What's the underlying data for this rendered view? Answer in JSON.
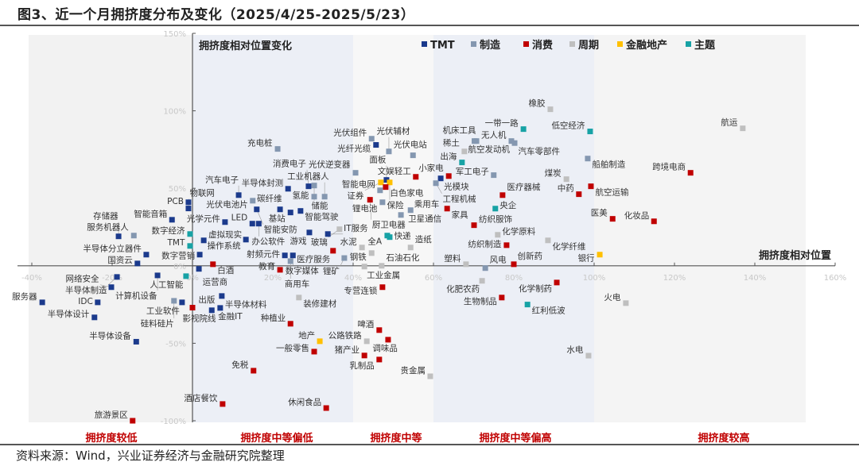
{
  "title": "图3、近一个月拥挤度分布及变化（2025/4/25-2025/5/23）",
  "source": "资料来源：Wind，兴业证券经济与金融研究院整理",
  "chart_data": {
    "type": "scatter",
    "xlabel": "拥挤度相对位置",
    "ylabel": "拥挤度相对位置变化",
    "xlim": [
      -40,
      160
    ],
    "ylim": [
      -100,
      150
    ],
    "x_ticks": [
      "-40%",
      "-20%",
      "0%",
      "20%",
      "40%",
      "60%",
      "80%",
      "100%",
      "120%",
      "140%",
      "160%"
    ],
    "y_ticks": [
      "150%",
      "100%",
      "50%",
      "0%",
      "-50%",
      "-100%"
    ],
    "legend_position": "top",
    "zones": [
      "拥挤度较低",
      "拥挤度中等偏低",
      "拥挤度中等",
      "拥挤度中等偏高",
      "拥挤度较高"
    ],
    "zone_bounds": [
      -40,
      0,
      40,
      60,
      100,
      160
    ],
    "groups": [
      {
        "name": "TMT",
        "color": "#1b3a8c"
      },
      {
        "name": "制造",
        "color": "#8497b0"
      },
      {
        "name": "消费",
        "color": "#c00000"
      },
      {
        "name": "周期",
        "color": "#bfbfbf"
      },
      {
        "name": "金融地产",
        "color": "#ffc000"
      },
      {
        "name": "主题",
        "color": "#17a2a5"
      }
    ],
    "points": [
      {
        "name": "PCB",
        "group": "TMT",
        "x": -1,
        "y": 41
      },
      {
        "name": "物联网",
        "group": "TMT",
        "x": -1,
        "y": 37
      },
      {
        "name": "智能音箱",
        "group": "TMT",
        "x": -5.1,
        "y": 29.7
      },
      {
        "name": "存储器",
        "group": "TMT",
        "x": -18.4,
        "y": 19
      },
      {
        "name": "服务机器人",
        "group": "制造",
        "x": -14.6,
        "y": 19.5
      },
      {
        "name": "数字经济",
        "group": "主题",
        "x": -0.6,
        "y": 20.5
      },
      {
        "name": "TMT",
        "group": "主题",
        "x": -0.6,
        "y": 12.8
      },
      {
        "name": "半导体分立器件",
        "group": "TMT",
        "x": -11.5,
        "y": 7.2
      },
      {
        "name": "国资云",
        "group": "TMT",
        "x": -13.7,
        "y": 1.5
      },
      {
        "name": "半导体制造",
        "group": "TMT",
        "x": -18.8,
        "y": -7.2
      },
      {
        "name": "计算机设备",
        "group": "TMT",
        "x": -8.7,
        "y": -6.2
      },
      {
        "name": "人工智能",
        "group": "主题",
        "x": -1.6,
        "y": -6.7
      },
      {
        "name": "网络安全",
        "group": "TMT",
        "x": -20.2,
        "y": -13.8
      },
      {
        "name": "服务器",
        "group": "TMT",
        "x": -37.4,
        "y": -23.6
      },
      {
        "name": "IDC",
        "group": "TMT",
        "x": -23.6,
        "y": -23.6
      },
      {
        "name": "硅料硅片",
        "group": "制造",
        "x": -4.6,
        "y": -22.6
      },
      {
        "name": "工业软件",
        "group": "TMT",
        "x": -2.6,
        "y": -23.6
      },
      {
        "name": "影视院线",
        "group": "消费",
        "x": 0,
        "y": -27
      },
      {
        "name": "半导体设计",
        "group": "TMT",
        "x": -24.4,
        "y": -33.3
      },
      {
        "name": "半导体设备",
        "group": "TMT",
        "x": -14,
        "y": -49
      },
      {
        "name": "旅游景区",
        "group": "消费",
        "x": -14.9,
        "y": -100
      },
      {
        "name": "充电桩",
        "group": "制造",
        "x": 21.2,
        "y": 75.4
      },
      {
        "name": "汽车电子",
        "group": "TMT",
        "x": 11.5,
        "y": 45.6
      },
      {
        "name": "半导体封测",
        "group": "TMT",
        "x": 23.8,
        "y": 49.7
      },
      {
        "name": "消费电子",
        "group": "TMT",
        "x": 28.9,
        "y": 51.3
      },
      {
        "name": "储能",
        "group": "制造",
        "x": 30.3,
        "y": 51.8
      },
      {
        "name": "工业机器人",
        "group": "制造",
        "x": 32.9,
        "y": 44.6
      },
      {
        "name": "氢能",
        "group": "制造",
        "x": 30.3,
        "y": 44.6
      },
      {
        "name": "光伏电池片",
        "group": "制造",
        "x": 15,
        "y": 42
      },
      {
        "name": "碳纤维",
        "group": "TMT",
        "x": 21.8,
        "y": 36.4
      },
      {
        "name": "智能安防",
        "group": "TMT",
        "x": 16,
        "y": 36.4
      },
      {
        "name": "基站",
        "group": "TMT",
        "x": 24.4,
        "y": 34.4
      },
      {
        "name": "智能驾驶",
        "group": "TMT",
        "x": 26.9,
        "y": 35.4
      },
      {
        "name": "光学元件",
        "group": "TMT",
        "x": 8.1,
        "y": 28.2
      },
      {
        "name": "LED",
        "group": "TMT",
        "x": 14.9,
        "y": 27.2
      },
      {
        "name": "办公软件",
        "group": "TMT",
        "x": 16.5,
        "y": 27.2
      },
      {
        "name": "虚拟现实",
        "group": "TMT",
        "x": 2.8,
        "y": 16.4
      },
      {
        "name": "操作系统",
        "group": "TMT",
        "x": 13.3,
        "y": 16.9
      },
      {
        "name": "游戏",
        "group": "TMT",
        "x": 29.1,
        "y": 21.5
      },
      {
        "name": "IT服务",
        "group": "TMT",
        "x": 33.7,
        "y": 20.5
      },
      {
        "name": "玻璃",
        "group": "周期",
        "x": 36.6,
        "y": 23.6
      },
      {
        "name": "数字营销",
        "group": "TMT",
        "x": 1.8,
        "y": 7.2
      },
      {
        "name": "射频元件",
        "group": "TMT",
        "x": 23,
        "y": 6.7
      },
      {
        "name": "数字媒体",
        "group": "TMT",
        "x": 25,
        "y": 6.7
      },
      {
        "name": "商用车",
        "group": "制造",
        "x": 24.4,
        "y": 3
      },
      {
        "name": "医疗服务",
        "group": "消费",
        "x": 35,
        "y": 9.7
      },
      {
        "name": "锂矿",
        "group": "制造",
        "x": 37.8,
        "y": 5
      },
      {
        "name": "白酒",
        "group": "消费",
        "x": 5.1,
        "y": 1
      },
      {
        "name": "运营商",
        "group": "TMT",
        "x": 1.6,
        "y": -2
      },
      {
        "name": "教育",
        "group": "消费",
        "x": 21.8,
        "y": -2.6
      },
      {
        "name": "光伏组件",
        "group": "制造",
        "x": 44.6,
        "y": 82
      },
      {
        "name": "光纤光缆",
        "group": "TMT",
        "x": 45.7,
        "y": 78
      },
      {
        "name": "光伏辅材",
        "group": "制造",
        "x": 48.9,
        "y": 73.8
      },
      {
        "name": "光伏电站",
        "group": "制造",
        "x": 54.9,
        "y": 71.3
      },
      {
        "name": "光伏逆变器",
        "group": "制造",
        "x": 40.6,
        "y": 60
      },
      {
        "name": "面板",
        "group": "TMT",
        "x": 48.3,
        "y": 55.4
      },
      {
        "name": "证券",
        "group": "金融地产",
        "x": 46.9,
        "y": 53.8
      },
      {
        "name": "保险",
        "group": "金融地产",
        "x": 49.1,
        "y": 53.8
      },
      {
        "name": "白色家电",
        "group": "消费",
        "x": 48.1,
        "y": 50.8
      },
      {
        "name": "文娱轻工",
        "group": "消费",
        "x": 55.6,
        "y": 57.4
      },
      {
        "name": "光模块",
        "group": "TMT",
        "x": 61.8,
        "y": 56.4
      },
      {
        "name": "小家电",
        "group": "消费",
        "x": 63.8,
        "y": 57.9
      },
      {
        "name": "工程机械",
        "group": "制造",
        "x": 60.6,
        "y": 53.3
      },
      {
        "name": "智能电网",
        "group": "制造",
        "x": 46.7,
        "y": 48.7
      },
      {
        "name": "厨卫电器",
        "group": "消费",
        "x": 44.2,
        "y": 42.6
      },
      {
        "name": "锂电池",
        "group": "制造",
        "x": 47.3,
        "y": 41
      },
      {
        "name": "卫星通信",
        "group": "制造",
        "x": 51.9,
        "y": 32.8
      },
      {
        "name": "乘用车",
        "group": "制造",
        "x": 54.3,
        "y": 35.9
      },
      {
        "name": "机床工具",
        "group": "制造",
        "x": 70.7,
        "y": 80.5
      },
      {
        "name": "航空发动机",
        "group": "制造",
        "x": 70.2,
        "y": 80.5
      },
      {
        "name": "稀土",
        "group": "周期",
        "x": 67.7,
        "y": 73.8
      },
      {
        "name": "出海",
        "group": "主题",
        "x": 67.1,
        "y": 66.7
      },
      {
        "name": "军工电子",
        "group": "制造",
        "x": 75,
        "y": 58.5
      },
      {
        "name": "家具",
        "group": "消费",
        "x": 63.4,
        "y": 36.9
      },
      {
        "name": "央企",
        "group": "主题",
        "x": 75.4,
        "y": 36.9
      },
      {
        "name": "纺织服饰",
        "group": "消费",
        "x": 70.1,
        "y": 26.2
      },
      {
        "name": "化学原料",
        "group": "周期",
        "x": 76,
        "y": 20
      },
      {
        "name": "全A",
        "group": "主题",
        "x": 48.5,
        "y": 19.5
      },
      {
        "name": "快递",
        "group": "主题",
        "x": 49.1,
        "y": 18.5
      },
      {
        "name": "水泥",
        "group": "周期",
        "x": 42.2,
        "y": 11.8
      },
      {
        "name": "造纸",
        "group": "周期",
        "x": 54.3,
        "y": 11.8
      },
      {
        "name": "钢铁",
        "group": "周期",
        "x": 44.6,
        "y": 8.2
      },
      {
        "name": "工业金属",
        "group": "周期",
        "x": 42.8,
        "y": -0.5
      },
      {
        "name": "石油石化",
        "group": "周期",
        "x": 47.1,
        "y": 0
      },
      {
        "name": "塑料",
        "group": "周期",
        "x": 68.1,
        "y": 1
      },
      {
        "name": "风电",
        "group": "制造",
        "x": 72.9,
        "y": -1.5
      },
      {
        "name": "橡胶",
        "group": "周期",
        "x": 89.1,
        "y": 101
      },
      {
        "name": "一带一路",
        "group": "主题",
        "x": 82.4,
        "y": 88.2
      },
      {
        "name": "低空经济",
        "group": "主题",
        "x": 99,
        "y": 86.7
      },
      {
        "name": "无人机",
        "group": "制造",
        "x": 79.4,
        "y": 80.5
      },
      {
        "name": "汽车零部件",
        "group": "制造",
        "x": 80.2,
        "y": 79.2
      },
      {
        "name": "船舶制造",
        "group": "制造",
        "x": 98.4,
        "y": 69.2
      },
      {
        "name": "煤炭",
        "group": "周期",
        "x": 93.1,
        "y": 55.9
      },
      {
        "name": "航空运输",
        "group": "消费",
        "x": 99.2,
        "y": 51.3
      },
      {
        "name": "中药",
        "group": "消费",
        "x": 96.2,
        "y": 46.2
      },
      {
        "name": "医疗器械",
        "group": "消费",
        "x": 77.2,
        "y": 45.6
      },
      {
        "name": "化学纤维",
        "group": "周期",
        "x": 88.5,
        "y": 16.4
      },
      {
        "name": "医美",
        "group": "消费",
        "x": 104.6,
        "y": 30.3
      },
      {
        "name": "跨境电商",
        "group": "消费",
        "x": 124,
        "y": 60
      },
      {
        "name": "化妆品",
        "group": "消费",
        "x": 114.9,
        "y": 28.7
      },
      {
        "name": "银行",
        "group": "金融地产",
        "x": 101.4,
        "y": 7.2
      },
      {
        "name": "航运",
        "group": "周期",
        "x": 137,
        "y": 88.7
      },
      {
        "name": "纺织制造",
        "group": "消费",
        "x": 78.2,
        "y": 13.3
      },
      {
        "name": "创新药",
        "group": "消费",
        "x": 80,
        "y": 1
      },
      {
        "name": "化肥农药",
        "group": "周期",
        "x": 72.1,
        "y": -9.7
      },
      {
        "name": "生物制品",
        "group": "消费",
        "x": 77,
        "y": -20.5
      },
      {
        "name": "红利低波",
        "group": "主题",
        "x": 83.4,
        "y": -25
      },
      {
        "name": "化学制药",
        "group": "消费",
        "x": 90.7,
        "y": -10.8
      },
      {
        "name": "火电",
        "group": "周期",
        "x": 107.9,
        "y": -24.1
      },
      {
        "name": "水电",
        "group": "周期",
        "x": 98.6,
        "y": -58
      },
      {
        "name": "专营连锁",
        "group": "消费",
        "x": 47.3,
        "y": -13.8
      },
      {
        "name": "啤酒",
        "group": "消费",
        "x": 46.5,
        "y": -41.5
      },
      {
        "name": "调味品",
        "group": "消费",
        "x": 48.7,
        "y": -47.7
      },
      {
        "name": "公路铁路",
        "group": "周期",
        "x": 43.4,
        "y": -48.7
      },
      {
        "name": "猪产业",
        "group": "消费",
        "x": 42.8,
        "y": -57.9
      },
      {
        "name": "乳制品",
        "group": "消费",
        "x": 46.5,
        "y": -60.5
      },
      {
        "name": "贵金属",
        "group": "周期",
        "x": 59.2,
        "y": -71.3
      },
      {
        "name": "半导体材料",
        "group": "TMT",
        "x": 7.3,
        "y": -19.5
      },
      {
        "name": "金融IT",
        "group": "TMT",
        "x": 4.8,
        "y": -28.7
      },
      {
        "name": "出版",
        "group": "TMT",
        "x": 6.9,
        "y": -27.2
      },
      {
        "name": "装修建材",
        "group": "周期",
        "x": 26.5,
        "y": -20.5
      },
      {
        "name": "种植业",
        "group": "消费",
        "x": 24.4,
        "y": -37.4
      },
      {
        "name": "地产",
        "group": "金融地产",
        "x": 31.7,
        "y": -48.7
      },
      {
        "name": "一般零售",
        "group": "消费",
        "x": 30.3,
        "y": -55.4
      },
      {
        "name": "免税",
        "group": "消费",
        "x": 15.2,
        "y": -67.7
      },
      {
        "name": "酒店餐饮",
        "group": "消费",
        "x": 7.5,
        "y": -89.2
      },
      {
        "name": "休闲食品",
        "group": "消费",
        "x": 33.3,
        "y": -91.8
      }
    ]
  }
}
